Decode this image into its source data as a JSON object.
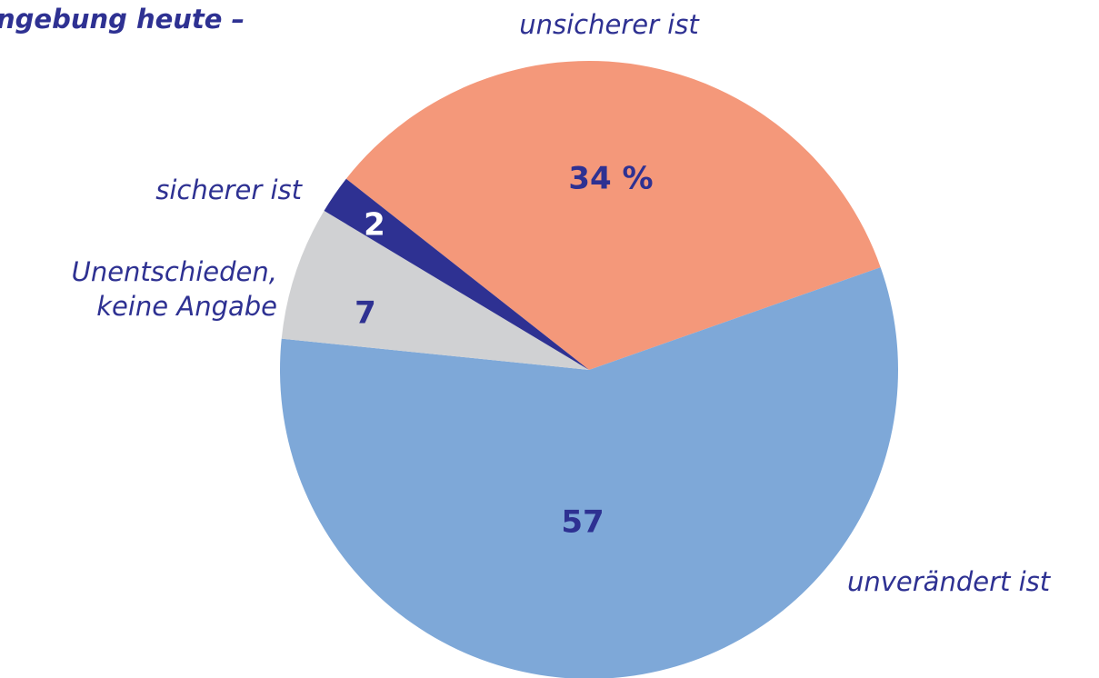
{
  "chart_data": {
    "type": "pie",
    "title": "ngebung heute –",
    "categories": [
      "unsicherer ist",
      "unverändert ist",
      "Unentschieden,\nkeine Angabe",
      "sicherer ist"
    ],
    "values": [
      34,
      57,
      7,
      2
    ],
    "value_labels": [
      "34 %",
      "57",
      "7",
      "2"
    ],
    "colors": [
      "#F4987A",
      "#7EA8D8",
      "#D0D1D3",
      "#2E3192"
    ]
  }
}
